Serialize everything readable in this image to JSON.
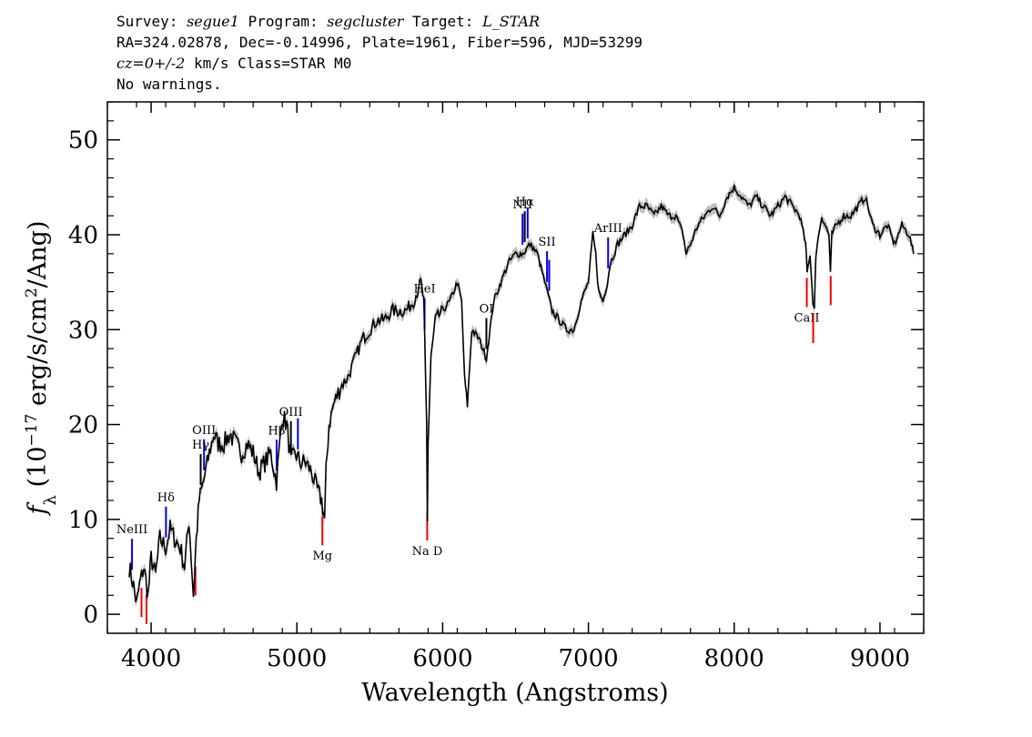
{
  "header": {
    "survey_label": "Survey:",
    "survey": "segue1",
    "program_label": "Program:",
    "program": "segcluster",
    "target_label": "Target:",
    "target": "L_STAR",
    "line2": "RA=324.02878, Dec=-0.14996, Plate=1961, Fiber=596, MJD=53299",
    "cz": "cz=0+/-2",
    "cz_rest": " km/s Class=STAR M0",
    "line4": "No warnings."
  },
  "chart_data": {
    "type": "line",
    "xlabel": "Wavelength (Angstroms)",
    "ylabel": "fλ (10⁻¹⁷ erg/s/cm²/Ang)",
    "xlim": [
      3700,
      9300
    ],
    "ylim": [
      -2,
      54
    ],
    "xticks": [
      4000,
      5000,
      6000,
      7000,
      8000,
      9000
    ],
    "yticks": [
      0,
      10,
      20,
      30,
      40,
      50
    ],
    "grid": false,
    "series": [
      {
        "color": "#000000",
        "error_band_color": "#c0c0c0",
        "x": [
          3850,
          3880,
          3900,
          3920,
          3950,
          3980,
          4000,
          4030,
          4060,
          4100,
          4130,
          4160,
          4200,
          4230,
          4260,
          4290,
          4310,
          4330,
          4360,
          4400,
          4430,
          4460,
          4500,
          4540,
          4580,
          4620,
          4660,
          4700,
          4740,
          4780,
          4820,
          4860,
          4900,
          4930,
          4960,
          4990,
          5020,
          5060,
          5100,
          5140,
          5170,
          5190,
          5200,
          5220,
          5250,
          5300,
          5350,
          5400,
          5450,
          5500,
          5550,
          5600,
          5650,
          5700,
          5750,
          5800,
          5850,
          5870,
          5890,
          5895,
          5900,
          5920,
          5950,
          6000,
          6050,
          6100,
          6130,
          6150,
          6170,
          6200,
          6250,
          6300,
          6350,
          6400,
          6450,
          6500,
          6550,
          6600,
          6650,
          6700,
          6750,
          6800,
          6850,
          6900,
          6950,
          7000,
          7030,
          7050,
          7070,
          7100,
          7130,
          7150,
          7200,
          7250,
          7300,
          7350,
          7400,
          7450,
          7500,
          7550,
          7600,
          7650,
          7670,
          7700,
          7750,
          7800,
          7850,
          7900,
          7950,
          8000,
          8050,
          8100,
          8150,
          8200,
          8250,
          8300,
          8350,
          8400,
          8450,
          8490,
          8500,
          8520,
          8540,
          8550,
          8560,
          8600,
          8650,
          8660,
          8670,
          8700,
          8750,
          8800,
          8850,
          8900,
          8950,
          9000,
          9050,
          9100,
          9150,
          9200,
          9230
        ],
        "y": [
          5,
          3,
          1,
          3,
          5,
          2,
          6,
          4,
          8,
          7,
          9,
          8,
          7,
          5,
          10,
          2,
          8,
          12,
          14,
          17,
          19,
          18,
          18,
          19,
          18,
          17,
          18,
          17,
          15,
          16,
          17,
          14,
          21,
          20,
          16,
          17,
          16,
          16,
          15,
          13,
          12,
          10,
          15,
          20,
          22,
          24,
          25,
          27,
          29,
          30,
          31,
          31,
          32,
          32,
          32,
          33,
          35,
          33,
          20,
          10,
          18,
          27,
          31,
          32,
          33,
          35,
          33,
          25,
          22,
          30,
          29,
          27,
          33,
          35,
          37,
          38,
          38,
          39,
          38,
          35,
          32,
          31,
          30,
          30,
          33,
          35,
          40,
          38,
          34,
          33,
          35,
          37,
          39,
          40,
          41,
          43,
          43,
          42,
          43,
          42,
          42,
          40,
          38,
          39,
          41,
          42,
          43,
          42,
          44,
          45,
          44,
          43,
          44,
          43,
          42,
          43,
          44,
          43,
          42,
          39,
          36,
          38,
          33,
          32,
          38,
          42,
          40,
          36,
          40,
          41,
          42,
          42,
          43,
          44,
          41,
          40,
          41,
          39,
          41,
          40,
          38
        ]
      }
    ],
    "lines_blue": [
      {
        "label": "NeIII",
        "x": 3869
      },
      {
        "label": "Hδ",
        "x": 4102
      },
      {
        "label": "OIII",
        "x": 4363
      },
      {
        "label": "Hβ",
        "x": 4861
      },
      {
        "label": "OIII",
        "x": 5007
      },
      {
        "label": "HeI",
        "x": 5876
      },
      {
        "label": "NII",
        "x": 6548
      },
      {
        "label": "NII",
        "x": 6583
      },
      {
        "label": "SII",
        "x": 6716
      },
      {
        "label": "SII",
        "x": 6731
      },
      {
        "label": "ArIII",
        "x": 7135
      }
    ],
    "lines_black": [
      {
        "label": "Hγ",
        "x": 4340
      },
      {
        "label": "OIII",
        "x": 4959
      },
      {
        "label": "OI",
        "x": 6300
      },
      {
        "label": "Hα",
        "x": 6563
      }
    ],
    "lines_red": [
      {
        "label": "",
        "x": 3934
      },
      {
        "label": "",
        "x": 3968
      },
      {
        "label": "",
        "x": 4304
      },
      {
        "label": "Mg",
        "x": 5175
      },
      {
        "label": "Na D",
        "x": 5894
      },
      {
        "label": "CaII",
        "x": 8498
      },
      {
        "label": "CaII",
        "x": 8542
      },
      {
        "label": "",
        "x": 8662
      }
    ]
  }
}
